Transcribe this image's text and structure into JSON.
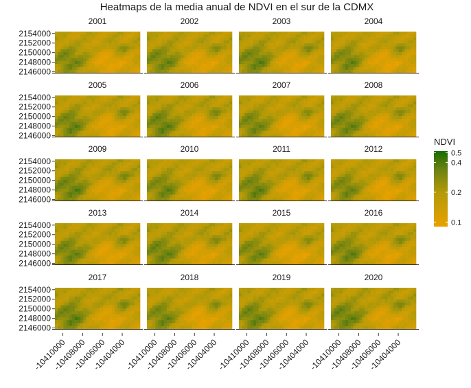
{
  "chart_data": {
    "type": "heatmap",
    "title": "Heatmaps de la media anual de NDVI en el sur de la CDMX",
    "facets": [
      "2001",
      "2002",
      "2003",
      "2004",
      "2005",
      "2006",
      "2007",
      "2008",
      "2009",
      "2010",
      "2011",
      "2012",
      "2013",
      "2014",
      "2015",
      "2016",
      "2017",
      "2018",
      "2019",
      "2020"
    ],
    "facet_layout": {
      "rows": 5,
      "cols": 4
    },
    "x_ticks": [
      -10410000,
      -10408000,
      -10406000,
      -10404000
    ],
    "x_tick_labels": [
      "-10410000",
      "-10408000",
      "-10406000",
      "-10404000"
    ],
    "y_ticks": [
      2146000,
      2148000,
      2150000,
      2152000,
      2154000
    ],
    "y_tick_labels": [
      "2146000",
      "2148000",
      "2150000",
      "2152000",
      "2154000"
    ],
    "xlim": [
      -10410800,
      -10402200
    ],
    "ylim": [
      2145800,
      2154400
    ],
    "legend": {
      "title": "NDVI",
      "position": "right",
      "ticks": [
        0.1,
        0.2,
        0.4,
        0.5
      ],
      "tick_labels": [
        "0.1",
        "0.2",
        "0.4",
        "0.5"
      ],
      "range": [
        0.09,
        0.52
      ],
      "scale": "log",
      "colors": {
        "low": "#e8a100",
        "mid": "#8a8c12",
        "high": "#1a6b00"
      }
    },
    "grid_size": {
      "nx": 30,
      "ny": 14
    },
    "field_seed": 7
  }
}
